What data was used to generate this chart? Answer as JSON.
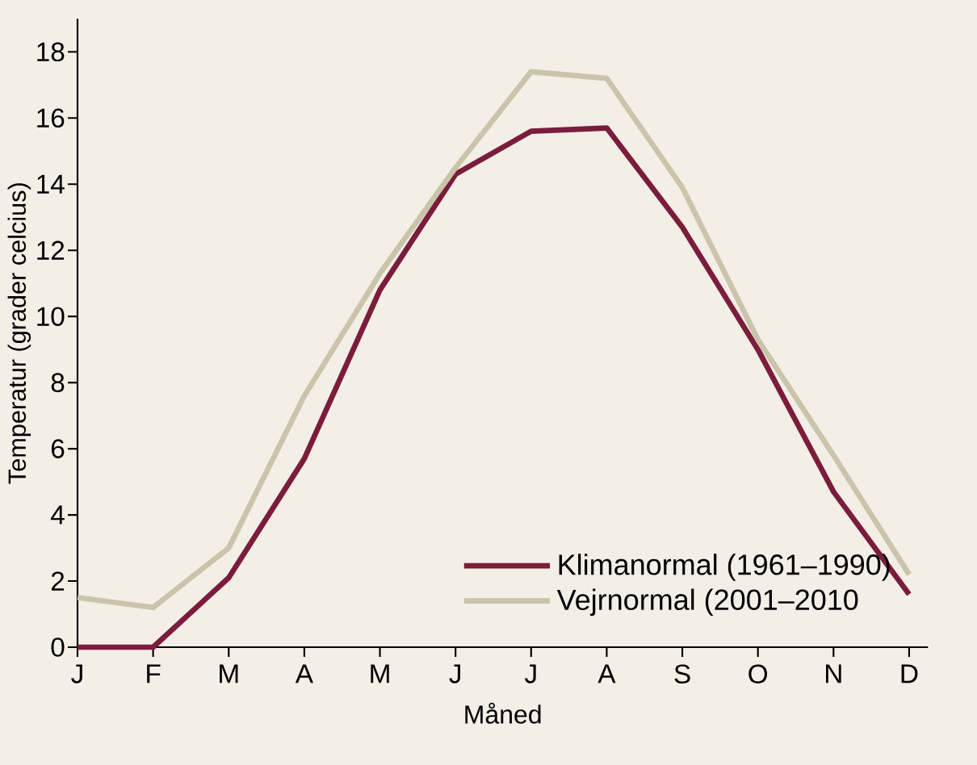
{
  "chart_data": {
    "type": "line",
    "xlabel": "Måned",
    "ylabel": "Temperatur (grader celcius)",
    "categories": [
      "J",
      "F",
      "M",
      "A",
      "M",
      "J",
      "J",
      "A",
      "S",
      "O",
      "N",
      "D"
    ],
    "series": [
      {
        "name": "Klimanormal (1961–1990)",
        "color": "#7b1c3c",
        "values": [
          0,
          0,
          2.1,
          5.7,
          10.8,
          14.3,
          15.6,
          15.7,
          12.7,
          9.0,
          4.7,
          1.6
        ]
      },
      {
        "name": "Vejrnormal (2001–2010",
        "color": "#c9c4aa",
        "values": [
          1.5,
          1.2,
          3.0,
          7.6,
          11.3,
          14.5,
          17.4,
          17.2,
          13.9,
          9.3,
          5.8,
          2.2
        ]
      }
    ],
    "ylim": [
      0,
      19
    ],
    "yticks": [
      0,
      2,
      4,
      6,
      8,
      10,
      12,
      14,
      16,
      18
    ],
    "legend": "bottom right",
    "grid": false,
    "marker": "none",
    "line_style": "solid"
  }
}
